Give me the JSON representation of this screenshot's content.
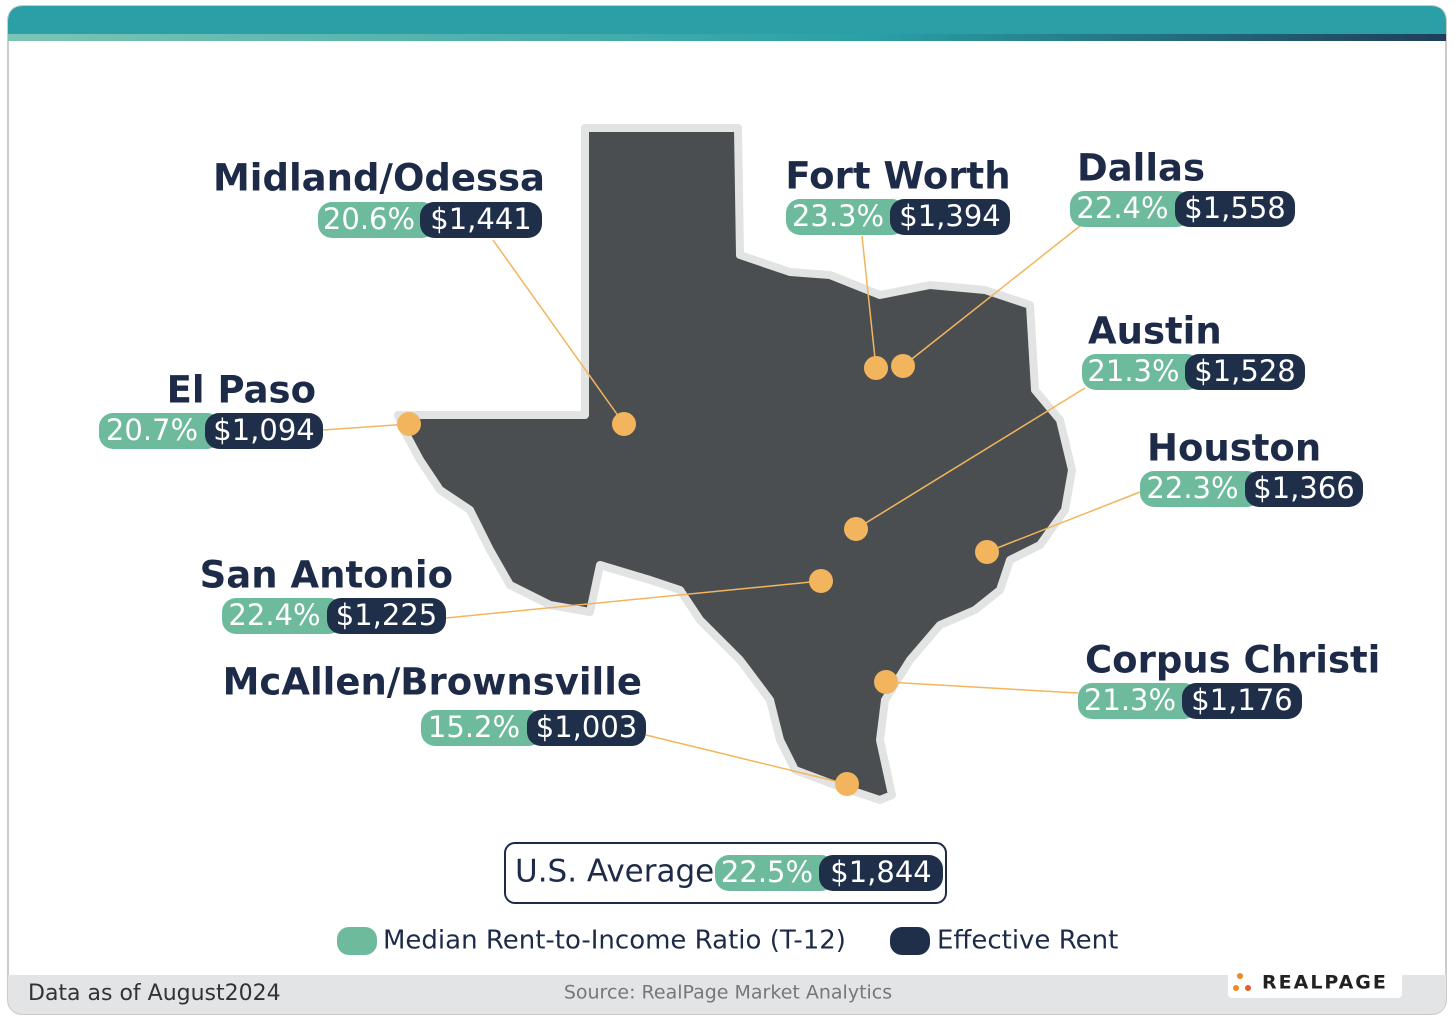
{
  "markets": [
    {
      "name": "Midland/Odessa",
      "ratio": "20.6%",
      "rent": "$1,441"
    },
    {
      "name": "Fort Worth",
      "ratio": "23.3%",
      "rent": "$1,394"
    },
    {
      "name": "Dallas",
      "ratio": "22.4%",
      "rent": "$1,558"
    },
    {
      "name": "Austin",
      "ratio": "21.3%",
      "rent": "$1,528"
    },
    {
      "name": "Houston",
      "ratio": "22.3%",
      "rent": "$1,366"
    },
    {
      "name": "El Paso",
      "ratio": "20.7%",
      "rent": "$1,094"
    },
    {
      "name": "San Antonio",
      "ratio": "22.4%",
      "rent": "$1,225"
    },
    {
      "name": "Corpus Christi",
      "ratio": "21.3%",
      "rent": "$1,176"
    },
    {
      "name": "McAllen/Brownsville",
      "ratio": "15.2%",
      "rent": "$1,003"
    }
  ],
  "us_average": {
    "label": "U.S. Average",
    "ratio": "22.5%",
    "rent": "$1,844"
  },
  "legend": [
    {
      "label": "Median Rent-to-Income Ratio (T-12)"
    },
    {
      "label": "Effective Rent"
    }
  ],
  "footer": {
    "data_note": "Data as of August2024",
    "source": "Source: RealPage Market Analytics",
    "logo": "REALPAGE"
  }
}
